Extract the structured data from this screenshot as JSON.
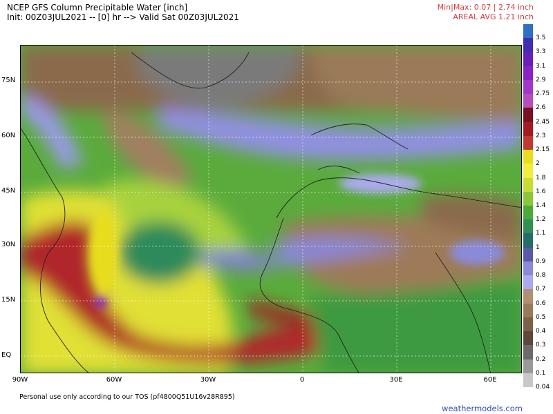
{
  "header": {
    "title": "NCEP GFS Column Precipitable Water [inch]",
    "subtitle": "Init: 00Z03JUL2021 -- [0] hr --> Valid Sat 00Z03JUL2021",
    "minmax": "Min|Max: 0.07 | 2.74 inch",
    "areal_avg": "AREAL AVG 1.21 inch"
  },
  "map": {
    "lat_labels": [
      "75N",
      "60N",
      "45N",
      "30N",
      "15N",
      "EQ"
    ],
    "lon_labels": [
      "90W",
      "60W",
      "30W",
      "0",
      "30E",
      "60E"
    ]
  },
  "colorbar": {
    "labels": [
      "3.5",
      "3.3",
      "3.1",
      "2.9",
      "2.75",
      "2.6",
      "2.45",
      "2.3",
      "2.15",
      "2",
      "1.8",
      "1.6",
      "1.4",
      "1.2",
      "1.1",
      "1",
      "0.9",
      "0.8",
      "0.7",
      "0.6",
      "0.5",
      "0.4",
      "0.3",
      "0.2",
      "0.1",
      "0.04"
    ],
    "colors": {
      "3.5": "#2f6fc4",
      "3.3": "#3d2fb0",
      "3.1": "#6a1fb8",
      "2.9": "#8a22c4",
      "2.75": "#a336c9",
      "2.6": "#b54dbd",
      "2.45": "#7a1020",
      "2.3": "#a31c24",
      "2.15": "#c13a30",
      "2": "#e8dd1c",
      "1.8": "#f2ee3c",
      "1.6": "#c8dc38",
      "1.4": "#8ec63a",
      "1.2": "#4caa3a",
      "1.1": "#2e9056",
      "1": "#266d6a",
      "0.9": "#5a5aa8",
      "0.8": "#8a8ad8",
      "0.7": "#aaaaee",
      "0.6": "#b09070",
      "0.5": "#9a7a58",
      "0.4": "#7c6048",
      "0.3": "#5e4838",
      "0.2": "#6a6a6a",
      "0.1": "#9a9a9a",
      "0.04": "#c8c8c8"
    }
  },
  "footer": {
    "tos": "Personal use only according to our TOS (pf4800Q51U16v28R895)",
    "brand": "weathermodels.com"
  }
}
